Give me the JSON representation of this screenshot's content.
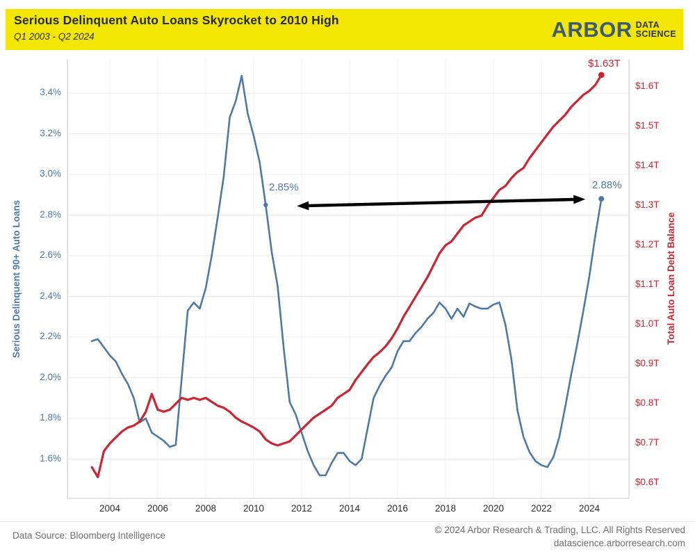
{
  "header": {
    "title": "Serious Delinquent Auto Loans Skyrocket to 2010 High",
    "subtitle": "Q1 2003 - Q2 2024",
    "background_color": "#F3E600",
    "logo": {
      "brand": "ARBOR",
      "tagline_line1": "DATA",
      "tagline_line2": "SCIENCE"
    }
  },
  "chart_data": {
    "type": "line",
    "frequency": "quarterly",
    "period": {
      "start": "Q1 2003",
      "end": "Q2 2024"
    },
    "grid": "horizontal-and-faint-vertical",
    "x_axis": {
      "tick_years": [
        2004,
        2006,
        2008,
        2010,
        2012,
        2014,
        2016,
        2018,
        2020,
        2022,
        2024
      ],
      "tick_labels": [
        "2004",
        "2006",
        "2008",
        "2010",
        "2012",
        "2014",
        "2016",
        "2018",
        "2020",
        "2022",
        "2024"
      ],
      "range_years": [
        2002.2,
        2025.7
      ]
    },
    "left_axis": {
      "title": "Serious Delinquent 90+ Auto Loans",
      "unit": "%",
      "color": "#4E79A7",
      "tick_values": [
        3.4,
        3.2,
        3.0,
        2.8,
        2.6,
        2.4,
        2.2,
        2.0,
        1.8,
        1.6
      ],
      "tick_labels": [
        "3.4%",
        "3.2%",
        "3.0%",
        "2.8%",
        "2.6%",
        "2.4%",
        "2.2%",
        "2.0%",
        "1.8%",
        "1.6%"
      ],
      "range": [
        1.41,
        3.55
      ]
    },
    "right_axis": {
      "title": "Total Auto Loan Debt Balance",
      "unit": "$T",
      "color": "#CD2432",
      "tick_values": [
        1.6,
        1.5,
        1.4,
        1.3,
        1.2,
        1.1,
        1.0,
        0.9,
        0.8,
        0.7,
        0.6
      ],
      "tick_labels": [
        "$1.6T",
        "$1.5T",
        "$1.4T",
        "$1.3T",
        "$1.2T",
        "$1.1T",
        "$1.0T",
        "$0.9T",
        "$0.8T",
        "$0.7T",
        "$0.6T"
      ],
      "range": [
        0.56,
        1.66
      ]
    },
    "series": [
      {
        "name": "Serious Delinquent 90+ Auto Loans",
        "axis": "left",
        "color": "#4E79A7",
        "start_quarter": "2003 Q1",
        "values": [
          2.18,
          2.19,
          2.15,
          2.11,
          2.08,
          2.02,
          1.97,
          1.9,
          1.78,
          1.8,
          1.73,
          1.71,
          1.69,
          1.66,
          1.67,
          2.0,
          2.33,
          2.37,
          2.34,
          2.44,
          2.6,
          2.79,
          2.99,
          3.28,
          3.36,
          3.485,
          3.3,
          3.19,
          3.06,
          2.85,
          2.62,
          2.45,
          2.15,
          1.88,
          1.82,
          1.73,
          1.64,
          1.57,
          1.52,
          1.52,
          1.58,
          1.63,
          1.63,
          1.59,
          1.57,
          1.6,
          1.75,
          1.9,
          1.96,
          2.01,
          2.05,
          2.13,
          2.18,
          2.18,
          2.22,
          2.25,
          2.29,
          2.32,
          2.37,
          2.34,
          2.29,
          2.34,
          2.3,
          2.365,
          2.35,
          2.34,
          2.34,
          2.36,
          2.37,
          2.26,
          2.09,
          1.84,
          1.71,
          1.635,
          1.59,
          1.57,
          1.56,
          1.61,
          1.71,
          1.86,
          2.02,
          2.17,
          2.33,
          2.5,
          2.7,
          2.88
        ]
      },
      {
        "name": "Total Auto Loan Debt Balance",
        "axis": "right",
        "color": "#CD2432",
        "start_quarter": "2003 Q1",
        "values": [
          0.64,
          0.615,
          0.68,
          0.7,
          0.715,
          0.73,
          0.74,
          0.745,
          0.755,
          0.78,
          0.825,
          0.785,
          0.78,
          0.785,
          0.8,
          0.815,
          0.81,
          0.815,
          0.81,
          0.815,
          0.805,
          0.795,
          0.79,
          0.78,
          0.765,
          0.755,
          0.748,
          0.74,
          0.73,
          0.71,
          0.7,
          0.695,
          0.7,
          0.705,
          0.72,
          0.735,
          0.75,
          0.765,
          0.775,
          0.785,
          0.795,
          0.815,
          0.825,
          0.835,
          0.86,
          0.88,
          0.9,
          0.918,
          0.93,
          0.945,
          0.965,
          0.99,
          1.02,
          1.045,
          1.07,
          1.095,
          1.12,
          1.15,
          1.18,
          1.2,
          1.21,
          1.23,
          1.25,
          1.26,
          1.27,
          1.275,
          1.3,
          1.32,
          1.34,
          1.35,
          1.37,
          1.385,
          1.395,
          1.42,
          1.44,
          1.46,
          1.48,
          1.5,
          1.515,
          1.53,
          1.55,
          1.565,
          1.58,
          1.59,
          1.605,
          1.63
        ]
      }
    ],
    "annotations": {
      "peak_2010": {
        "text": "2.85%",
        "quarter": "Q2 2010",
        "axis": "left",
        "value": 2.85,
        "quarter_index": 29
      },
      "latest_delinquency": {
        "text": "2.88%",
        "quarter": "Q2 2024",
        "axis": "left",
        "value": 2.88,
        "quarter_index": 85
      },
      "latest_balance": {
        "text": "$1.63T",
        "quarter": "Q2 2024",
        "axis": "right",
        "value": 1.63,
        "quarter_index": 85
      },
      "arrow": {
        "type": "double-headed",
        "color": "#000000",
        "from_quarter_index": 29,
        "from_value": 2.85,
        "to_quarter_index": 85,
        "to_value": 2.88,
        "axis": "left"
      }
    }
  },
  "footer": {
    "source": "Data Source: Bloomberg Intelligence",
    "copyright": "© 2024 Arbor Research & Trading, LLC. All Rights Reserved",
    "website": "datascience.arborresearch.com"
  }
}
